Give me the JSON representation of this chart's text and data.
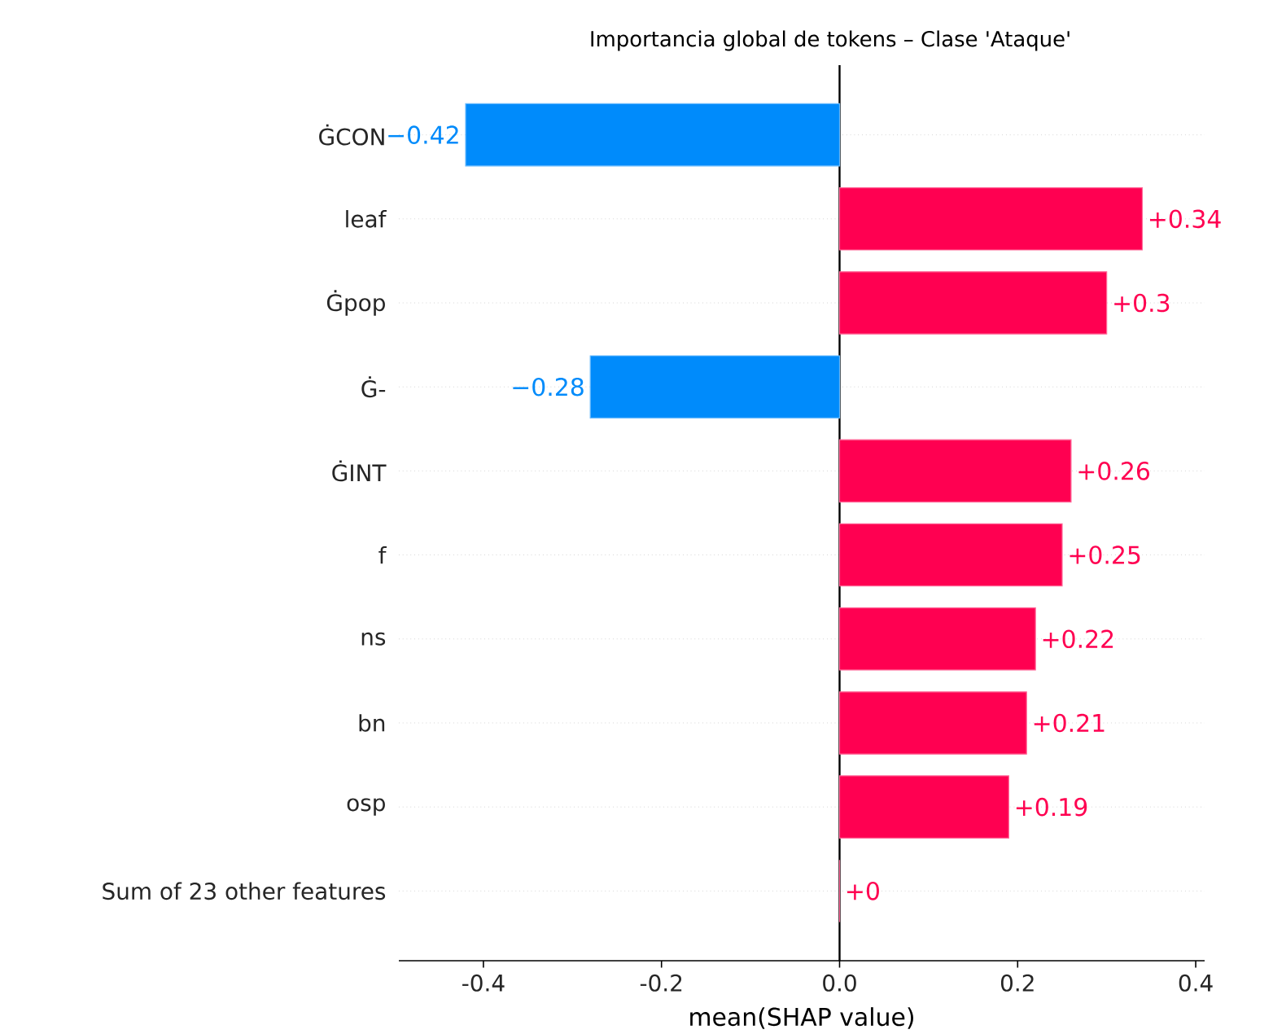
{
  "chart_data": {
    "type": "bar",
    "orientation": "horizontal",
    "title": "Importancia global de tokens – Clase 'Ataque'",
    "xlabel": "mean(SHAP value)",
    "categories": [
      "ĠCON",
      "leaf",
      "Ġpop",
      "Ġ-",
      "ĠINT",
      "f",
      "ns",
      "bn",
      "osp",
      "Sum of 23 other features"
    ],
    "values": [
      -0.42,
      0.34,
      0.3,
      -0.28,
      0.26,
      0.25,
      0.22,
      0.21,
      0.19,
      0
    ],
    "value_labels": [
      "−0.42",
      "+0.34",
      "+0.3",
      "−0.28",
      "+0.26",
      "+0.25",
      "+0.22",
      "+0.21",
      "+0.19",
      "+0"
    ],
    "colors": [
      "#008bfb",
      "#ff0051",
      "#ff0051",
      "#008bfb",
      "#ff0051",
      "#ff0051",
      "#ff0051",
      "#ff0051",
      "#ff0051",
      "#ff0051"
    ],
    "xlim": [
      -0.495,
      0.41
    ],
    "xticks": [
      -0.4,
      -0.2,
      {
        "value": 0,
        "label": "0.0"
      },
      0.2,
      0.4
    ],
    "ref_lines": [
      {
        "axis": "x",
        "value": 0,
        "color": "#000000"
      }
    ],
    "grid": "y"
  }
}
